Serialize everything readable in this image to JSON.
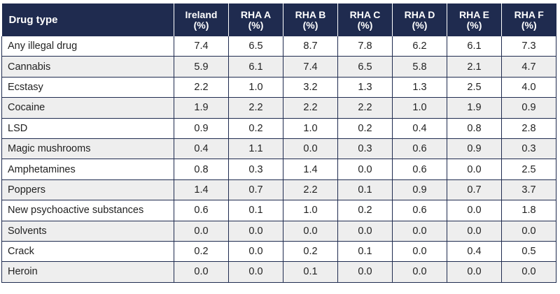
{
  "table": {
    "headers": [
      {
        "line1": "Drug type",
        "line2": ""
      },
      {
        "line1": "Ireland",
        "line2": "(%)"
      },
      {
        "line1": "RHA A",
        "line2": "(%)"
      },
      {
        "line1": "RHA B",
        "line2": "(%)"
      },
      {
        "line1": "RHA C",
        "line2": "(%)"
      },
      {
        "line1": "RHA D",
        "line2": "(%)"
      },
      {
        "line1": "RHA E",
        "line2": "(%)"
      },
      {
        "line1": "RHA F",
        "line2": "(%)"
      }
    ],
    "rows": [
      {
        "label": "Any illegal drug",
        "values": [
          "7.4",
          "6.5",
          "8.7",
          "7.8",
          "6.2",
          "6.1",
          "7.3"
        ]
      },
      {
        "label": "Cannabis",
        "values": [
          "5.9",
          "6.1",
          "7.4",
          "6.5",
          "5.8",
          "2.1",
          "4.7"
        ]
      },
      {
        "label": "Ecstasy",
        "values": [
          "2.2",
          "1.0",
          "3.2",
          "1.3",
          "1.3",
          "2.5",
          "4.0"
        ]
      },
      {
        "label": "Cocaine",
        "values": [
          "1.9",
          "2.2",
          "2.2",
          "2.2",
          "1.0",
          "1.9",
          "0.9"
        ]
      },
      {
        "label": "LSD",
        "values": [
          "0.9",
          "0.2",
          "1.0",
          "0.2",
          "0.4",
          "0.8",
          "2.8"
        ]
      },
      {
        "label": "Magic mushrooms",
        "values": [
          "0.4",
          "1.1",
          "0.0",
          "0.3",
          "0.6",
          "0.9",
          "0.3"
        ]
      },
      {
        "label": "Amphetamines",
        "values": [
          "0.8",
          "0.3",
          "1.4",
          "0.0",
          "0.6",
          "0.0",
          "2.5"
        ]
      },
      {
        "label": "Poppers",
        "values": [
          "1.4",
          "0.7",
          "2.2",
          "0.1",
          "0.9",
          "0.7",
          "3.7"
        ]
      },
      {
        "label": "New psychoactive substances",
        "values": [
          "0.6",
          "0.1",
          "1.0",
          "0.2",
          "0.6",
          "0.0",
          "1.8"
        ]
      },
      {
        "label": "Solvents",
        "values": [
          "0.0",
          "0.0",
          "0.0",
          "0.0",
          "0.0",
          "0.0",
          "0.0"
        ]
      },
      {
        "label": "Crack",
        "values": [
          "0.2",
          "0.0",
          "0.2",
          "0.1",
          "0.0",
          "0.4",
          "0.5"
        ]
      },
      {
        "label": "Heroin",
        "values": [
          "0.0",
          "0.0",
          "0.1",
          "0.0",
          "0.0",
          "0.0",
          "0.0"
        ]
      }
    ]
  },
  "colors": {
    "header_bg": "#1f2b4f",
    "header_text": "#ffffff",
    "stripe_bg": "#eeeeee",
    "border": "#1f2b4f"
  }
}
